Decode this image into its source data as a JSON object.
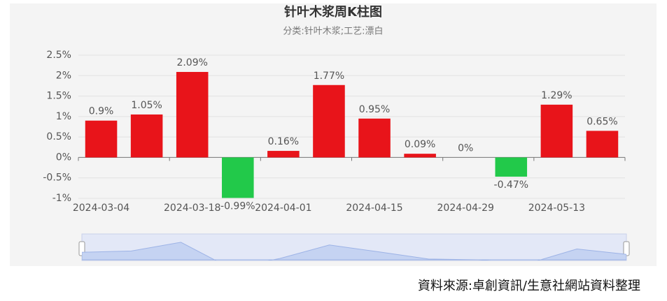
{
  "chart_data": {
    "type": "bar",
    "title": "针叶木浆周K柱图",
    "subtitle": "分类:针叶木浆;工艺:漂白",
    "categories": [
      "2024-03-04",
      null,
      "2024-03-18",
      null,
      "2024-04-01",
      null,
      "2024-04-15",
      null,
      "2024-04-29",
      null,
      "2024-05-13",
      null
    ],
    "values": [
      0.9,
      1.05,
      2.09,
      -0.99,
      0.16,
      1.77,
      0.95,
      0.09,
      0,
      -0.47,
      1.29,
      0.65
    ],
    "value_labels": [
      "0.9%",
      "1.05%",
      "2.09%",
      "-0.99%",
      "0.16%",
      "1.77%",
      "0.95%",
      "0.09%",
      "0%",
      "-0.47%",
      "1.29%",
      "0.65%"
    ],
    "positive_color": "#e8141a",
    "negative_color": "#22c94a",
    "ylim": [
      -1,
      2.5
    ],
    "yticks": [
      {
        "value": -1,
        "label": "-1%"
      },
      {
        "value": -0.5,
        "label": "-0.5%"
      },
      {
        "value": 0,
        "label": "0%"
      },
      {
        "value": 0.5,
        "label": "0.5%"
      },
      {
        "value": 1,
        "label": "1%"
      },
      {
        "value": 1.5,
        "label": "1.5%"
      },
      {
        "value": 2,
        "label": "2%"
      },
      {
        "value": 2.5,
        "label": "2.5%"
      }
    ],
    "grid": true,
    "source": "資料來源:卓創資訊/生意社網站資料整理"
  }
}
